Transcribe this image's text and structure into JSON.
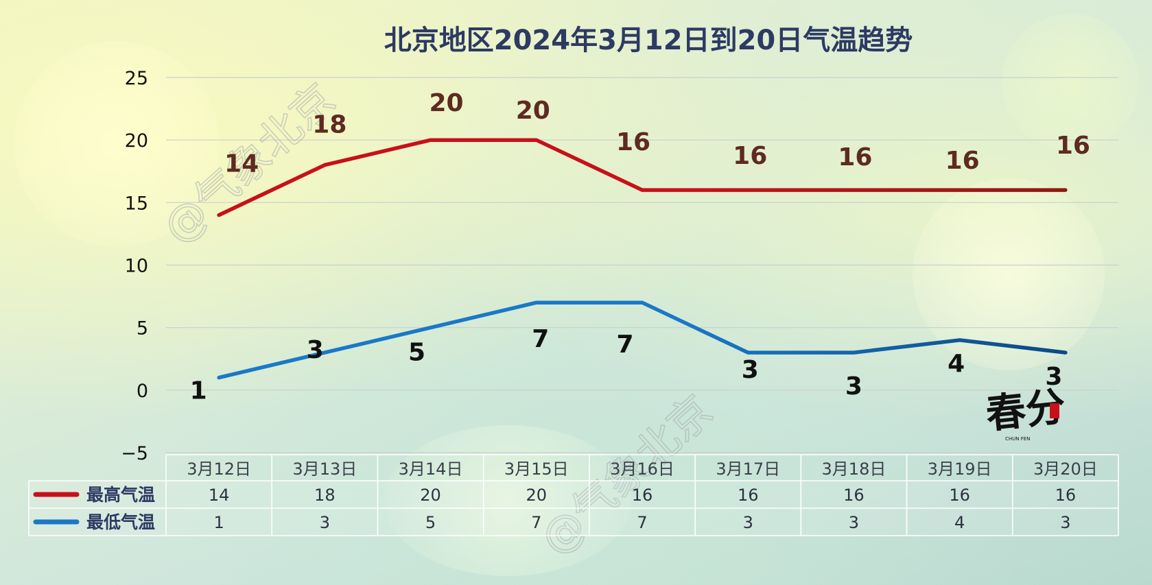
{
  "watermark": "@气象北京",
  "badge": {
    "main": "春分",
    "small": "CHUN FEN"
  },
  "colors": {
    "high": "#c8101a",
    "high_end": "#8e1a12",
    "low": "#1a78c8",
    "low_end": "#0c4a84",
    "high_label": "#5e2a22",
    "low_label": "#111111",
    "title": "#2d3a63"
  },
  "chart_data": {
    "type": "line",
    "title": "北京地区2024年3月12日到20日气温趋势",
    "categories": [
      "3月12日",
      "3月13日",
      "3月14日",
      "3月15日",
      "3月16日",
      "3月17日",
      "3月18日",
      "3月19日",
      "3月20日"
    ],
    "series": [
      {
        "name": "最高气温",
        "values": [
          14,
          18,
          20,
          20,
          16,
          16,
          16,
          16,
          16
        ]
      },
      {
        "name": "最低气温",
        "values": [
          1,
          3,
          5,
          7,
          7,
          3,
          3,
          4,
          3
        ]
      }
    ],
    "ylim": [
      -5,
      25
    ],
    "yticks": [
      "25",
      "20",
      "15",
      "10",
      "5",
      "0",
      "−5"
    ],
    "grid": true,
    "data_table": true
  }
}
